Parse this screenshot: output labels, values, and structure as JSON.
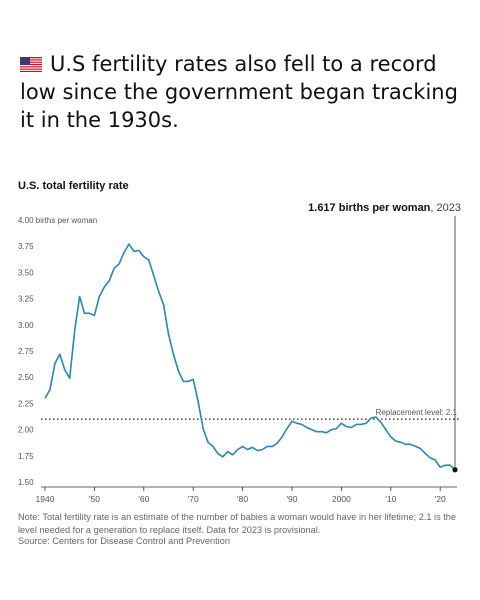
{
  "post": {
    "text": "U.S fertility rates also fell to a record low since the government began tracking it in the 1930s.",
    "flag_icon": "us-flag-emoji"
  },
  "chart_data": {
    "type": "line",
    "title": "U.S. total fertility rate",
    "ylabel": "births per woman",
    "xlim": [
      1940,
      2023
    ],
    "ylim": [
      1.5,
      4.0
    ],
    "x_ticks": [
      1940,
      1950,
      1960,
      1970,
      1980,
      1990,
      2000,
      2010,
      2020
    ],
    "x_tick_labels": [
      "1940",
      "'50",
      "'60",
      "'70",
      "'80",
      "'90",
      "2000",
      "'10",
      "'20"
    ],
    "y_ticks": [
      1.5,
      1.75,
      2.0,
      2.25,
      2.5,
      2.75,
      3.0,
      3.25,
      3.5,
      3.75,
      4.0
    ],
    "y_tick_labels": [
      "1.50",
      "1.75",
      "2.00",
      "2.25",
      "2.50",
      "2.75",
      "3.00",
      "3.25",
      "3.50",
      "3.75",
      "4.00 births per woman"
    ],
    "grid": false,
    "line_color": "#2a86b5",
    "reference_line": {
      "value": 2.1,
      "label": "Replacement level: 2.1"
    },
    "annotation": {
      "bold": "1.617 births per woman",
      "rest": ", 2023",
      "x": 2023,
      "y": 1.617
    },
    "series": [
      {
        "x": [
          1940,
          1941,
          1942,
          1943,
          1944,
          1945,
          1946,
          1947,
          1948,
          1949,
          1950,
          1951,
          1952,
          1953,
          1954,
          1955,
          1956,
          1957,
          1958,
          1959,
          1960,
          1961,
          1962,
          1963,
          1964,
          1965,
          1966,
          1967,
          1968,
          1969,
          1970,
          1971,
          1972,
          1973,
          1974,
          1975,
          1976,
          1977,
          1978,
          1979,
          1980,
          1981,
          1982,
          1983,
          1984,
          1985,
          1986,
          1987,
          1988,
          1989,
          1990,
          1991,
          1992,
          1993,
          1994,
          1995,
          1996,
          1997,
          1998,
          1999,
          2000,
          2001,
          2002,
          2003,
          2004,
          2005,
          2006,
          2007,
          2008,
          2009,
          2010,
          2011,
          2012,
          2013,
          2014,
          2015,
          2016,
          2017,
          2018,
          2019,
          2020,
          2021,
          2022,
          2023
        ],
        "values": [
          2.3,
          2.38,
          2.63,
          2.72,
          2.57,
          2.49,
          2.94,
          3.27,
          3.11,
          3.11,
          3.09,
          3.27,
          3.36,
          3.42,
          3.54,
          3.58,
          3.69,
          3.77,
          3.7,
          3.71,
          3.65,
          3.62,
          3.47,
          3.32,
          3.19,
          2.91,
          2.72,
          2.56,
          2.46,
          2.46,
          2.48,
          2.27,
          2.01,
          1.88,
          1.84,
          1.77,
          1.74,
          1.79,
          1.76,
          1.81,
          1.84,
          1.81,
          1.83,
          1.8,
          1.81,
          1.84,
          1.84,
          1.87,
          1.93,
          2.01,
          2.08,
          2.06,
          2.05,
          2.02,
          2.0,
          1.98,
          1.98,
          1.97,
          2.0,
          2.01,
          2.06,
          2.03,
          2.02,
          2.05,
          2.05,
          2.06,
          2.11,
          2.12,
          2.07,
          2.0,
          1.93,
          1.89,
          1.88,
          1.86,
          1.86,
          1.84,
          1.82,
          1.77,
          1.73,
          1.71,
          1.64,
          1.66,
          1.66,
          1.617
        ]
      }
    ]
  },
  "footer": {
    "note": "Note: Total fertility rate is an estimate of the number of babies a woman would have in her lifetime; 2.1 is the level needed for a generation to replace itself. Data for 2023 is provisional.",
    "source": "Source: Centers for Disease Control and Prevention"
  }
}
